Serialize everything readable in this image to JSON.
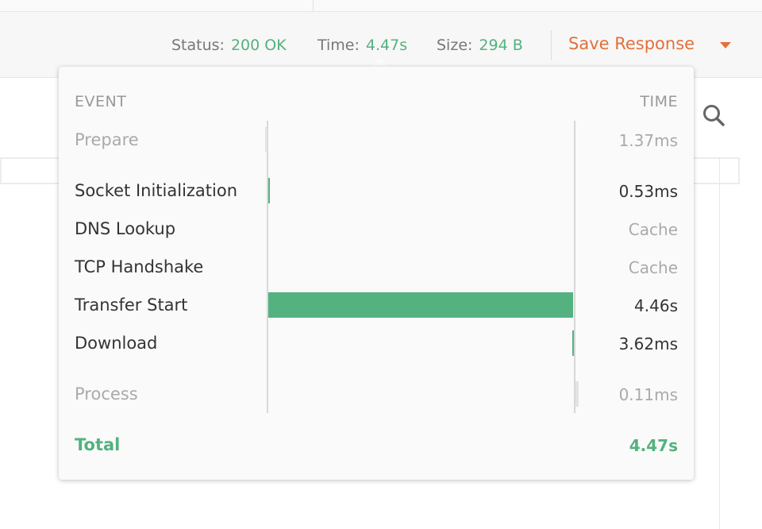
{
  "status_bar": {
    "status_label": "Status:",
    "status_value": "200 OK",
    "time_label": "Time:",
    "time_value": "4.47s",
    "size_label": "Size:",
    "size_value": "294 B",
    "save_label": "Save Response"
  },
  "timing": {
    "header_event": "EVENT",
    "header_time": "TIME",
    "total_ms": 4470,
    "rows": [
      {
        "event": "Prepare",
        "time": "1.37ms",
        "start_ms": 0,
        "duration_ms": 1.37,
        "phase": "pre"
      },
      {
        "event": "Socket Initialization",
        "time": "0.53ms",
        "start_ms": 0,
        "duration_ms": 0.53,
        "phase": "main"
      },
      {
        "event": "DNS Lookup",
        "time": "Cache",
        "start_ms": 0,
        "duration_ms": 0,
        "phase": "main"
      },
      {
        "event": "TCP Handshake",
        "time": "Cache",
        "start_ms": 0,
        "duration_ms": 0,
        "phase": "main"
      },
      {
        "event": "Transfer Start",
        "time": "4.46s",
        "start_ms": 0.53,
        "duration_ms": 4460,
        "phase": "main"
      },
      {
        "event": "Download",
        "time": "3.62ms",
        "start_ms": 4460.5,
        "duration_ms": 3.62,
        "phase": "main"
      },
      {
        "event": "Process",
        "time": "0.11ms",
        "start_ms": 4464.2,
        "duration_ms": 0.11,
        "phase": "post"
      }
    ],
    "total_label": "Total",
    "total_value": "4.47s"
  },
  "colors": {
    "accent_green": "#53b27f",
    "accent_orange": "#e2703a",
    "muted_text": "#aaaaaa"
  },
  "icons": {
    "search": "search-icon",
    "save_menu": "chevron-down-icon"
  }
}
